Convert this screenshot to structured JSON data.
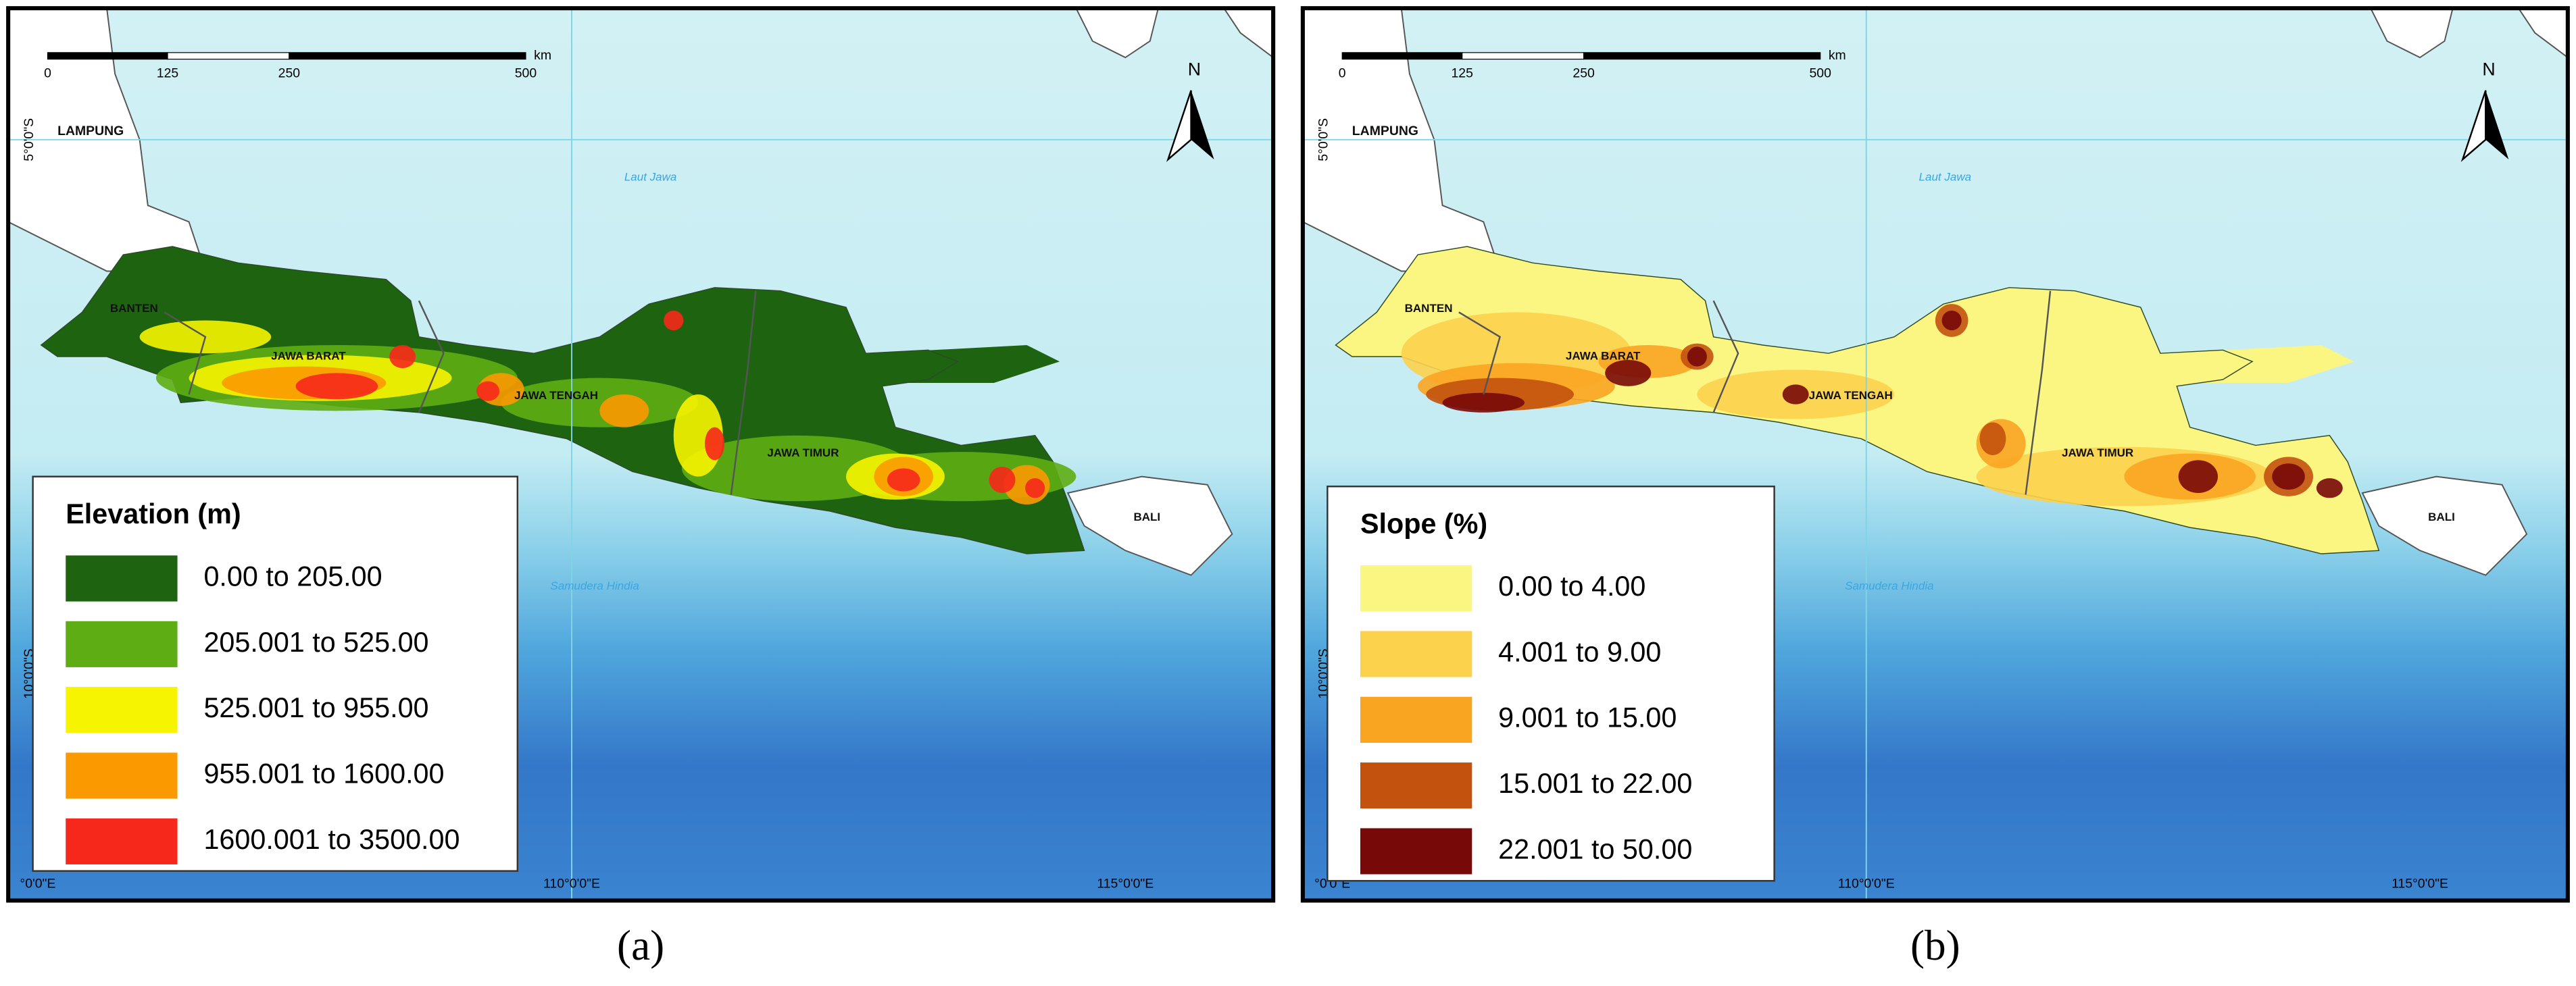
{
  "panels": [
    {
      "caption": "(a)",
      "legend": {
        "title": "Elevation (m)",
        "items": [
          {
            "label": "0.00 to 205.00",
            "color": "#1e6410"
          },
          {
            "label": "205.001 to 525.00",
            "color": "#5fad14"
          },
          {
            "label": "525.001 to 955.00",
            "color": "#f6f400"
          },
          {
            "label": "955.001 to 1600.00",
            "color": "#fb9a00"
          },
          {
            "label": "1600.001 to 3500.00",
            "color": "#f6281b"
          }
        ]
      },
      "scale_bar": {
        "ticks": [
          "0",
          "125",
          "250",
          "500"
        ],
        "unit": "km"
      },
      "north": "N",
      "latitude_labels": [
        "5°0'0\"S",
        "10°0'0\"S"
      ],
      "longitude_labels": [
        "°0'0\"E",
        "110°0'0\"E",
        "115°0'0\"E"
      ],
      "place_labels": [
        "LAMPUNG",
        "BANTEN",
        "JAWA BARAT",
        "JAWA TENGAH",
        "JAWA TIMUR",
        "BALI",
        "Laut Jawa",
        "Samudera Hindia"
      ]
    },
    {
      "caption": "(b)",
      "legend": {
        "title": "Slope (%)",
        "items": [
          {
            "label": "0.00 to 4.00",
            "color": "#fbf582"
          },
          {
            "label": "4.001 to 9.00",
            "color": "#fcd24c"
          },
          {
            "label": "9.001 to 15.00",
            "color": "#f9a522"
          },
          {
            "label": "15.001 to 22.00",
            "color": "#c3520e"
          },
          {
            "label": "22.001 to 50.00",
            "color": "#780909"
          }
        ]
      },
      "scale_bar": {
        "ticks": [
          "0",
          "125",
          "250",
          "500"
        ],
        "unit": "km"
      },
      "north": "N",
      "latitude_labels": [
        "5°0'0\"S",
        "10°0'0\"S"
      ],
      "longitude_labels": [
        "°0'0\"E",
        "110°0'0\"E",
        "115°0'0\"E"
      ],
      "place_labels": [
        "LAMPUNG",
        "BANTEN",
        "JAWA BARAT",
        "JAWA TENGAH",
        "JAWA TIMUR",
        "BALI",
        "Laut Jawa",
        "Samudera Hindia"
      ]
    }
  ]
}
